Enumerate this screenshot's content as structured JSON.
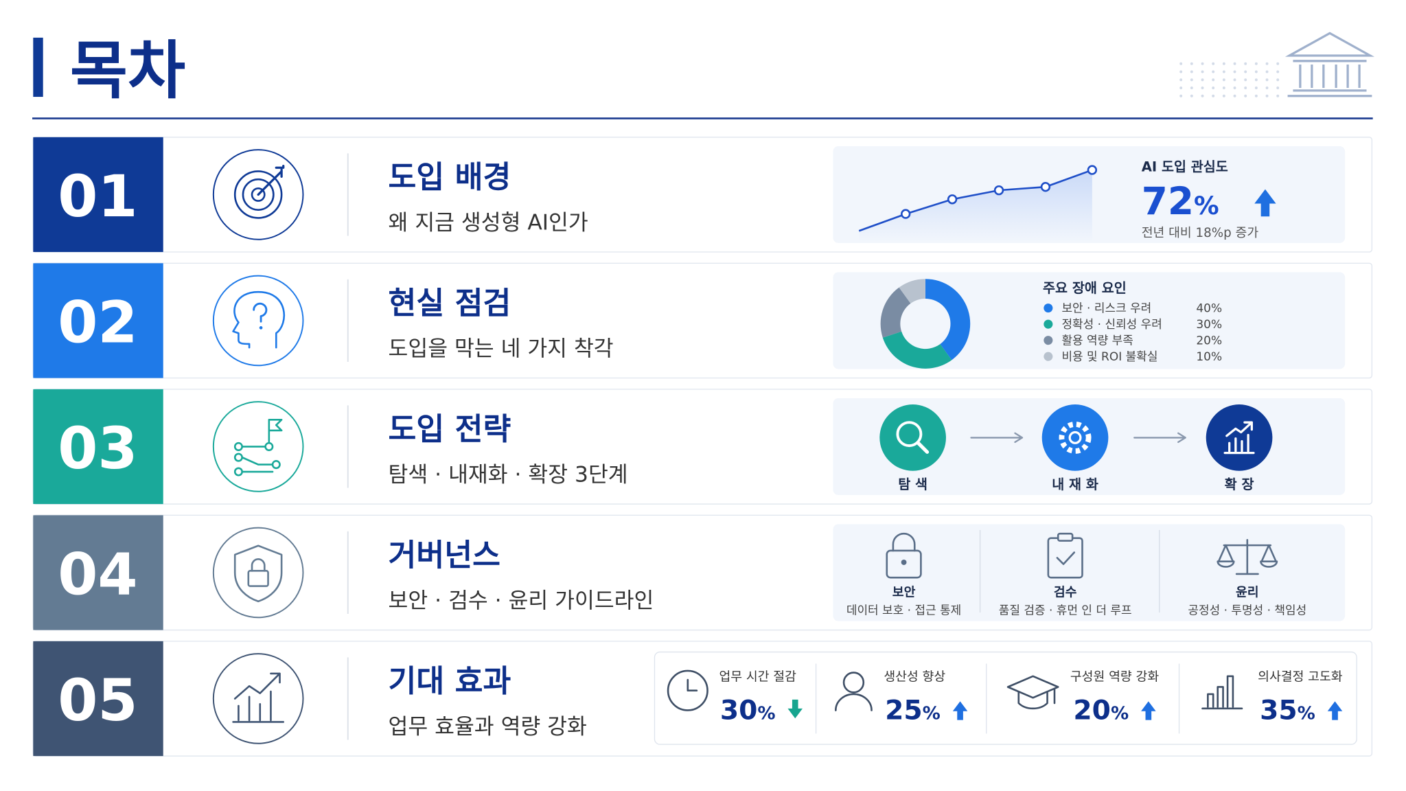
{
  "header": {
    "title": "목차"
  },
  "sections": [
    {
      "number": "01",
      "title": "도입 배경",
      "subtitle": "왜 지금 생성형 AI인가",
      "color": "#0f3a96"
    },
    {
      "number": "02",
      "title": "현실 점검",
      "subtitle": "도입을 막는 네 가지 착각",
      "color": "#1f7ae8"
    },
    {
      "number": "03",
      "title": "도입 전략",
      "subtitle": "탐색 · 내재화 · 확장 3단계",
      "color": "#1aa99a"
    },
    {
      "number": "04",
      "title": "거버넌스",
      "subtitle": "보안 · 검수 · 윤리 가이드라인",
      "color": "#637b93"
    },
    {
      "number": "05",
      "title": "기대 효과",
      "subtitle": "업무 효율과 역량 강화",
      "color": "#3f5473"
    }
  ],
  "panels": {
    "interest": {
      "label": "AI 도입 관심도",
      "value": 72,
      "unit": "%",
      "note": "전년 대비 18%p 증가",
      "trend": [
        10,
        25,
        38,
        46,
        49,
        64
      ],
      "ylim": [
        0,
        70
      ]
    },
    "barriers": {
      "title": "주요 장애 요인",
      "items": [
        {
          "label": "보안 · 리스크 우려",
          "value": 40,
          "value_label": "40%",
          "color": "#1f7ae8"
        },
        {
          "label": "정확성 · 신뢰성 우려",
          "value": 30,
          "value_label": "30%",
          "color": "#1aa99a"
        },
        {
          "label": "활용 역량 부족",
          "value": 20,
          "value_label": "20%",
          "color": "#7a8ca3"
        },
        {
          "label": "비용 및 ROI 불확실",
          "value": 10,
          "value_label": "10%",
          "color": "#b8c2ce"
        }
      ]
    },
    "strategy": {
      "steps": [
        {
          "label": "탐 색",
          "color": "#1aa99a"
        },
        {
          "label": "내 재 화",
          "color": "#1f7ae8"
        },
        {
          "label": "확 장",
          "color": "#0f3a96"
        }
      ]
    },
    "governance": {
      "items": [
        {
          "title": "보안",
          "desc": "데이터 보호 · 접근 통제"
        },
        {
          "title": "검수",
          "desc": "품질 검증 · 휴먼 인 더 루프"
        },
        {
          "title": "윤리",
          "desc": "공정성 · 투명성 · 책임성"
        }
      ]
    },
    "effects": {
      "items": [
        {
          "label": "업무 시간 절감",
          "value": 30,
          "unit": "%",
          "direction": "down"
        },
        {
          "label": "생산성 향상",
          "value": 25,
          "unit": "%",
          "direction": "up"
        },
        {
          "label": "구성원 역량 강화",
          "value": 20,
          "unit": "%",
          "direction": "up"
        },
        {
          "label": "의사결정 고도화",
          "value": 35,
          "unit": "%",
          "direction": "up"
        }
      ]
    }
  }
}
